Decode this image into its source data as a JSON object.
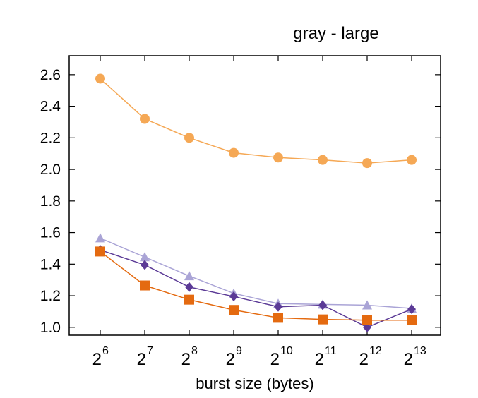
{
  "chart_data": {
    "type": "line",
    "title": "gray - large",
    "xlabel": "burst size (bytes)",
    "ylabel": "",
    "x_ticks": [
      {
        "base": "2",
        "exp": "6"
      },
      {
        "base": "2",
        "exp": "7"
      },
      {
        "base": "2",
        "exp": "8"
      },
      {
        "base": "2",
        "exp": "9"
      },
      {
        "base": "2",
        "exp": "10"
      },
      {
        "base": "2",
        "exp": "11"
      },
      {
        "base": "2",
        "exp": "12"
      },
      {
        "base": "2",
        "exp": "13"
      }
    ],
    "y_ticks": [
      "1.0",
      "1.2",
      "1.4",
      "1.6",
      "1.8",
      "2.0",
      "2.2",
      "2.4",
      "2.6"
    ],
    "ylim": [
      0.95,
      2.72
    ],
    "grid": false,
    "legend": "none",
    "series": [
      {
        "color": "#f5a855",
        "marker": "circle",
        "values": [
          2.575,
          2.32,
          2.2,
          2.105,
          2.075,
          2.06,
          2.04,
          2.06
        ]
      },
      {
        "color": "#aaa4d6",
        "marker": "triangle",
        "values": [
          1.565,
          1.445,
          1.325,
          1.215,
          1.15,
          1.145,
          1.14,
          1.12
        ]
      },
      {
        "color": "#5b3a96",
        "marker": "diamond",
        "values": [
          1.49,
          1.395,
          1.255,
          1.195,
          1.13,
          1.14,
          1.0,
          1.115
        ]
      },
      {
        "color": "#e46a10",
        "marker": "square",
        "values": [
          1.48,
          1.265,
          1.175,
          1.11,
          1.06,
          1.05,
          1.045,
          1.045
        ]
      }
    ]
  }
}
